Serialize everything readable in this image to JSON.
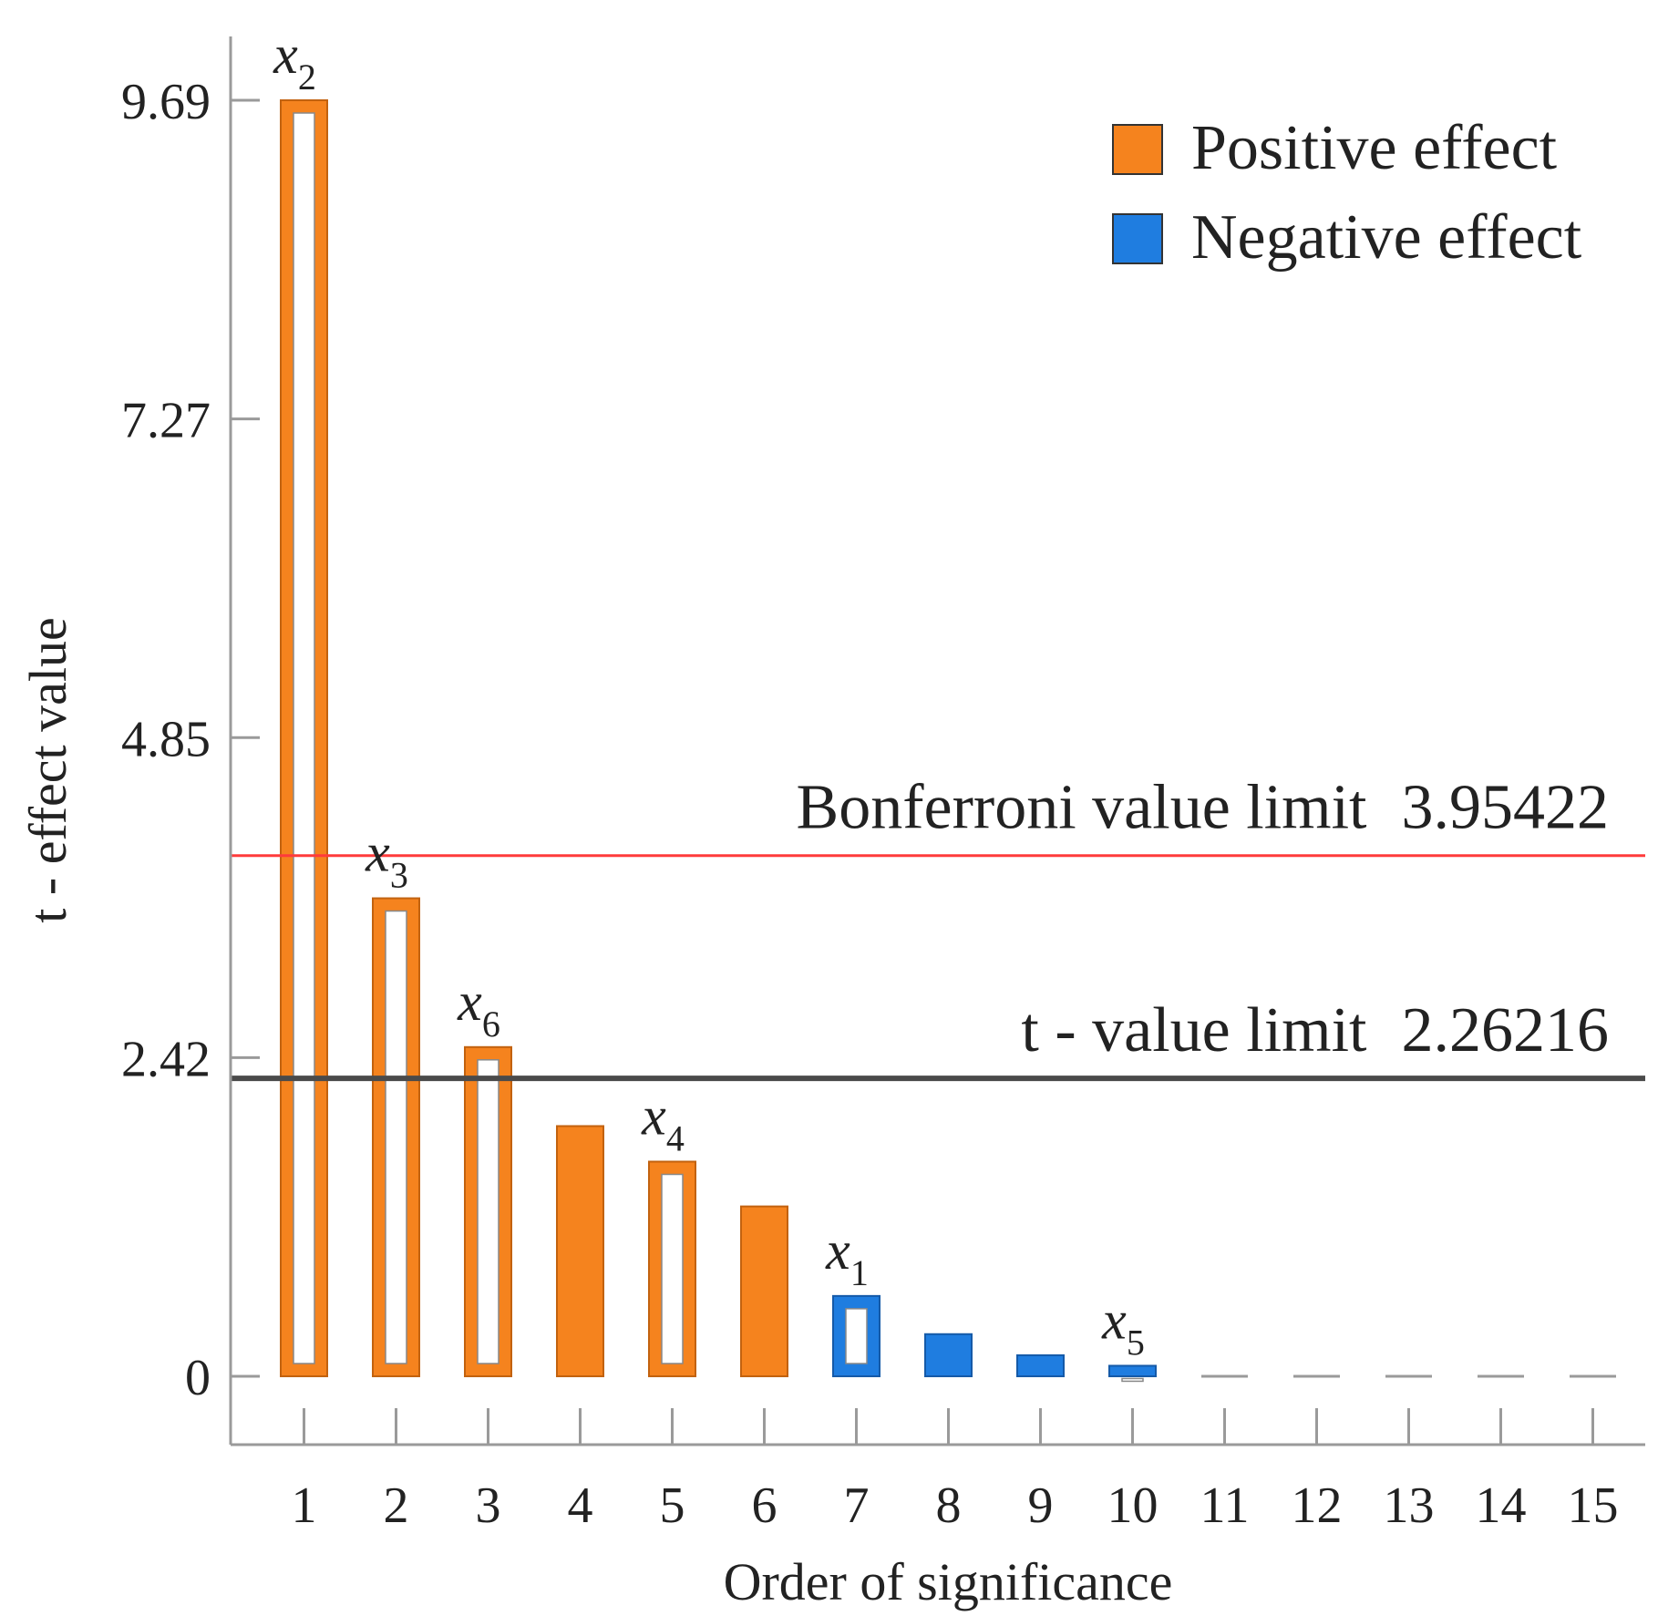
{
  "chart_data": {
    "type": "bar",
    "xlabel": "Order of significance",
    "ylabel": "t - effect value",
    "ylim": [
      0,
      9.69
    ],
    "yticks": [
      "0",
      "2.42",
      "4.85",
      "7.27",
      "9.69"
    ],
    "ytick_values": [
      0,
      2.42,
      4.85,
      7.27,
      9.69
    ],
    "categories": [
      "1",
      "2",
      "3",
      "4",
      "5",
      "6",
      "7",
      "8",
      "9",
      "10",
      "11",
      "12",
      "13",
      "14",
      "15"
    ],
    "values": [
      9.69,
      3.63,
      2.5,
      1.9,
      1.63,
      1.29,
      0.61,
      0.32,
      0.16,
      0.08,
      0,
      0,
      0,
      0,
      0
    ],
    "effects": [
      "positive",
      "positive",
      "positive",
      "positive",
      "positive",
      "positive",
      "negative",
      "negative",
      "negative",
      "negative",
      "none",
      "none",
      "none",
      "none",
      "none"
    ],
    "hollow": [
      true,
      true,
      true,
      false,
      true,
      false,
      true,
      false,
      false,
      true,
      false,
      false,
      false,
      false,
      false
    ],
    "bar_labels": [
      {
        "index": 0,
        "base": "x",
        "sub": "2"
      },
      {
        "index": 1,
        "base": "x",
        "sub": "3"
      },
      {
        "index": 2,
        "base": "x",
        "sub": "6"
      },
      {
        "index": 4,
        "base": "x",
        "sub": "4"
      },
      {
        "index": 6,
        "base": "x",
        "sub": "1"
      },
      {
        "index": 9,
        "base": "x",
        "sub": "5"
      }
    ],
    "legend": [
      {
        "label": "Positive effect",
        "color": "#f5831e"
      },
      {
        "label": "Negative effect",
        "color": "#1f7de0"
      }
    ],
    "legend_position": "top-right",
    "reference_lines": [
      {
        "label": "Bonferroni value limit",
        "value_text": "3.95422",
        "value": 3.95422,
        "color": "#ff3b3b"
      },
      {
        "label": "t - value limit",
        "value_text": "2.26216",
        "value": 2.26216,
        "color": "#4a4a4a"
      }
    ],
    "colors": {
      "positive": "#f5831e",
      "negative": "#1f7de0",
      "none": "#9a9a9a"
    }
  }
}
